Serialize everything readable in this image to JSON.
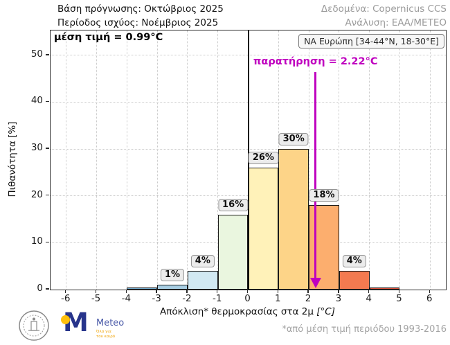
{
  "header": {
    "forecast_base": "Βάση πρόγνωσης: Οκτώβριος 2025",
    "valid_period": "Περίοδος ισχύος: Νοέμβριος 2025",
    "data_source": "Δεδομένα: Copernicus CCS",
    "analysis": "Ανάλυση: ΕΑΑ/ΜΕΤΕΟ"
  },
  "annotations": {
    "mean_label": "μέση τιμή = 0.99°C",
    "region_label": "ΝΑ Ευρώπη [34-44°N, 18-30°E]",
    "observation_label": "παρατήρηση = 2.22°C",
    "observation_value": 2.22,
    "observation_color": "#bf00bf",
    "footnote": "*από μέση τιμή περιόδου 1993-2016"
  },
  "logos": {
    "meteo_name": "Meteo",
    "meteo_tagline_line1": "Όλα για",
    "meteo_tagline_line2": "τον καιρό",
    "meteo_m": "M"
  },
  "chart_data": {
    "type": "bar",
    "title": "",
    "xlabel_main": "Απόκλιση* θερμοκρασίας στα 2μ",
    "xlabel_unit": "[°C]",
    "ylabel": "Πιθανότητα [%]",
    "xlim": [
      -6.52,
      6.52
    ],
    "ylim": [
      0,
      55.3
    ],
    "x_ticks": [
      -6,
      -5,
      -4,
      -3,
      -2,
      -1,
      0,
      1,
      2,
      3,
      4,
      5,
      6
    ],
    "y_ticks": [
      0,
      10,
      20,
      30,
      40,
      50
    ],
    "grid": "dotted",
    "zero_line": true,
    "bins": [
      {
        "range": [
          -4,
          -3
        ],
        "value": 0.4,
        "label": null,
        "color": "#74add1"
      },
      {
        "range": [
          -3,
          -2
        ],
        "value": 1,
        "label": "1%",
        "color": "#a8cee3"
      },
      {
        "range": [
          -2,
          -1
        ],
        "value": 4,
        "label": "4%",
        "color": "#d2e9f3"
      },
      {
        "range": [
          -1,
          0
        ],
        "value": 16,
        "label": "16%",
        "color": "#eaf6df"
      },
      {
        "range": [
          0,
          1
        ],
        "value": 26,
        "label": "26%",
        "color": "#fff2b9"
      },
      {
        "range": [
          1,
          2
        ],
        "value": 30,
        "label": "30%",
        "color": "#fdd488"
      },
      {
        "range": [
          2,
          3
        ],
        "value": 18,
        "label": "18%",
        "color": "#fcae6e"
      },
      {
        "range": [
          3,
          4
        ],
        "value": 4,
        "label": "4%",
        "color": "#f37a50"
      },
      {
        "range": [
          4,
          5
        ],
        "value": 0.4,
        "label": null,
        "color": "#e1523d"
      }
    ]
  }
}
